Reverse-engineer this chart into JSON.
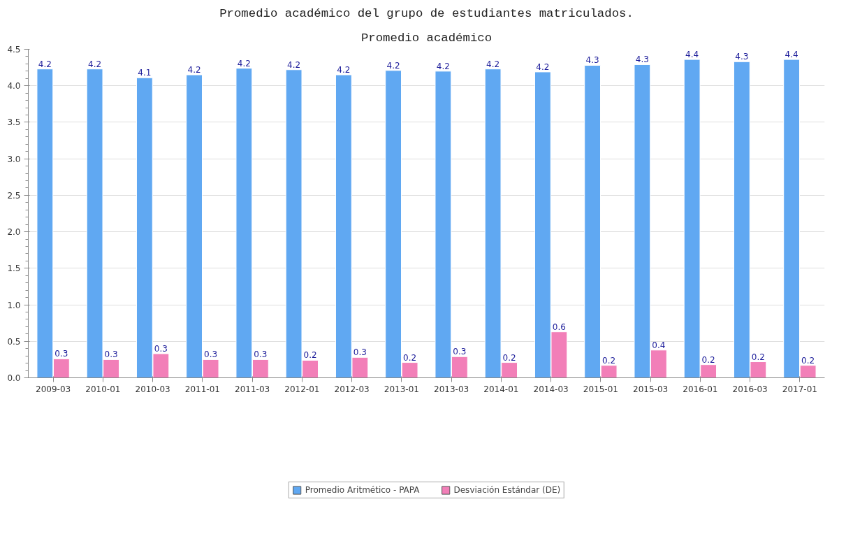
{
  "chart_data": {
    "type": "bar",
    "title": "Promedio académico del grupo de estudiantes matriculados.",
    "subtitle": "Promedio académico",
    "categories": [
      "2009-03",
      "2010-01",
      "2010-03",
      "2011-01",
      "2011-03",
      "2012-01",
      "2012-03",
      "2013-01",
      "2013-03",
      "2014-01",
      "2014-03",
      "2015-01",
      "2015-03",
      "2016-01",
      "2016-03",
      "2017-01"
    ],
    "series": [
      {
        "name": "Promedio Aritmético - PAPA",
        "color": "#60a8f2",
        "values": [
          4.23,
          4.23,
          4.11,
          4.15,
          4.24,
          4.22,
          4.15,
          4.21,
          4.2,
          4.23,
          4.19,
          4.28,
          4.29,
          4.36,
          4.33,
          4.36
        ],
        "value_labels": [
          "4.2",
          "4.2",
          "4.1",
          "4.2",
          "4.2",
          "4.2",
          "4.2",
          "4.2",
          "4.2",
          "4.2",
          "4.2",
          "4.3",
          "4.3",
          "4.4",
          "4.3",
          "4.4"
        ]
      },
      {
        "name": "Desviación Estándar (DE)",
        "color": "#f27fb8",
        "values": [
          0.26,
          0.25,
          0.33,
          0.25,
          0.25,
          0.24,
          0.28,
          0.21,
          0.29,
          0.21,
          0.63,
          0.17,
          0.38,
          0.18,
          0.22,
          0.17
        ],
        "value_labels": [
          "0.3",
          "0.3",
          "0.3",
          "0.3",
          "0.3",
          "0.2",
          "0.3",
          "0.2",
          "0.3",
          "0.2",
          "0.6",
          "0.2",
          "0.4",
          "0.2",
          "0.2",
          "0.2"
        ]
      }
    ],
    "ylim": [
      0,
      4.5
    ],
    "yticks": [
      "0.0",
      "0.5",
      "1.0",
      "1.5",
      "2.0",
      "2.5",
      "3.0",
      "3.5",
      "4.0",
      "4.5"
    ],
    "grid": "y",
    "legend": "bottom"
  }
}
